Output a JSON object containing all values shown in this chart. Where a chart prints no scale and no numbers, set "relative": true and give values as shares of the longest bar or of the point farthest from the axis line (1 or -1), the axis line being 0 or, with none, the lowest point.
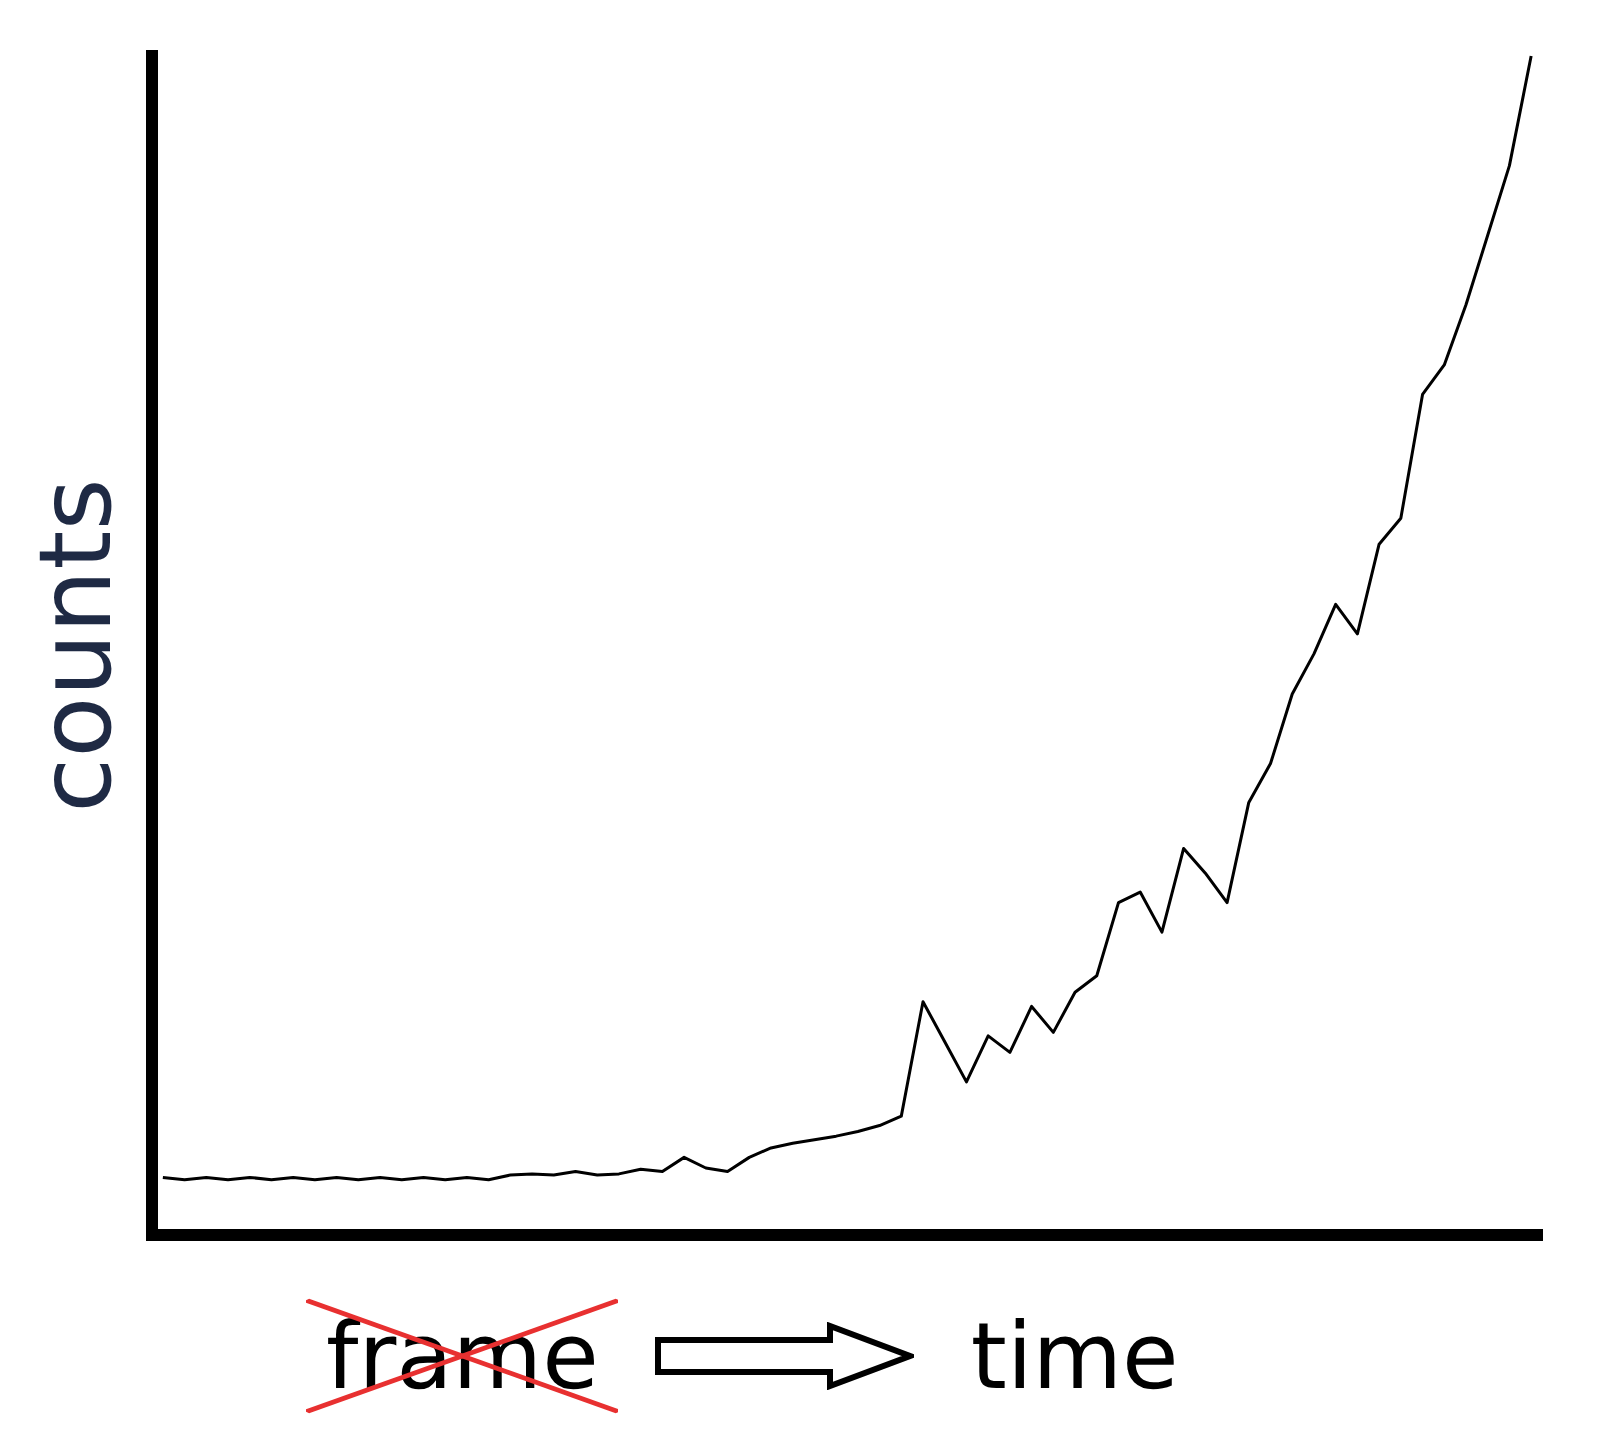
{
  "chart_data": {
    "type": "line",
    "relative": true,
    "xlabel": "time",
    "ylabel": "counts",
    "annotations": [
      "frame"
    ],
    "color": "#000000",
    "grid": false,
    "legend": false,
    "marker": "none",
    "line_style": "solid",
    "categories": [
      null,
      null,
      null,
      null,
      null,
      null,
      null,
      null,
      null,
      null,
      null,
      null,
      null,
      null,
      null,
      null,
      null,
      null,
      null,
      null,
      null,
      null,
      null,
      null,
      null,
      null,
      null,
      null,
      null,
      null,
      null,
      null,
      null,
      null,
      null,
      null,
      null,
      null,
      null,
      null,
      null,
      null,
      null,
      null,
      null,
      null,
      null,
      null,
      null,
      null,
      null,
      null,
      null,
      null,
      null,
      null,
      null,
      null,
      null,
      null,
      null,
      null,
      null,
      null
    ],
    "values": [
      0.049,
      0.047,
      0.049,
      0.047,
      0.049,
      0.047,
      0.049,
      0.047,
      0.049,
      0.047,
      0.049,
      0.047,
      0.049,
      0.047,
      0.049,
      0.047,
      0.051,
      0.052,
      0.051,
      0.054,
      0.051,
      0.052,
      0.056,
      0.054,
      0.066,
      0.057,
      0.054,
      0.066,
      0.074,
      0.078,
      0.081,
      0.084,
      0.088,
      0.093,
      0.101,
      0.198,
      0.164,
      0.13,
      0.169,
      0.155,
      0.194,
      0.172,
      0.206,
      0.22,
      0.282,
      0.291,
      0.257,
      0.328,
      0.307,
      0.282,
      0.367,
      0.4,
      0.459,
      0.493,
      0.535,
      0.51,
      0.586,
      0.608,
      0.713,
      0.738,
      0.789,
      0.848,
      0.907,
      1
    ]
  }
}
